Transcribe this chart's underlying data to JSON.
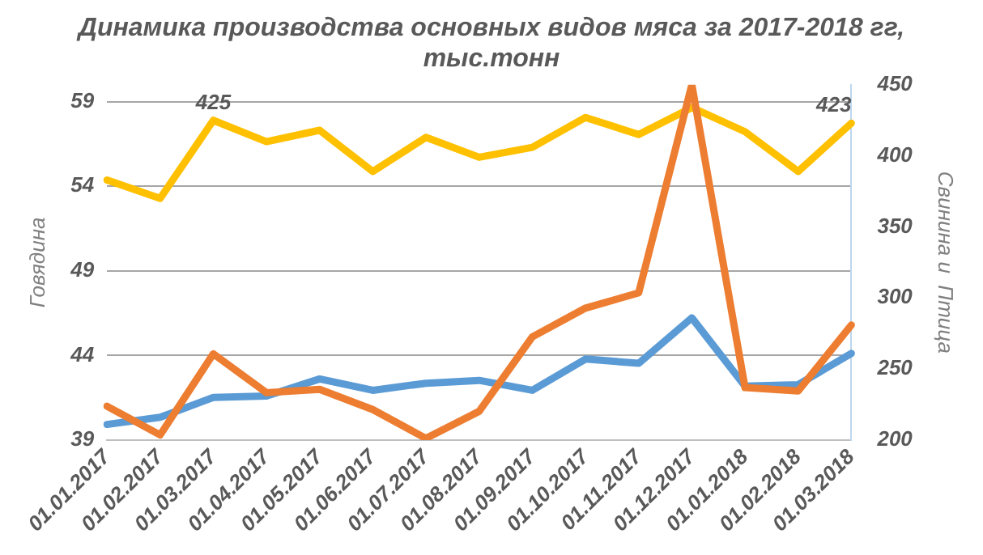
{
  "chart_data": {
    "type": "line",
    "title": "Динамика производства основных видов мяса за 2017-2018 гг, тыс.тонн",
    "ylabel": "Говядина",
    "y2label": "Свинина и  Птица",
    "categories": [
      "01.01.2017",
      "01.02.2017",
      "01.03.2017",
      "01.04.2017",
      "01.05.2017",
      "01.06.2017",
      "01.07.2017",
      "01.08.2017",
      "01.09.2017",
      "01.10.2017",
      "01.11.2017",
      "01.12.2017",
      "01.01.2018",
      "01.02.2018",
      "01.03.2018"
    ],
    "series": [
      {
        "color": "#ffc000",
        "axis": "y2",
        "values": [
          383,
          370,
          425,
          410,
          418,
          389,
          413,
          399,
          406,
          427,
          415,
          434,
          417,
          389,
          423
        ],
        "value_labels": [
          null,
          null,
          "425",
          null,
          null,
          null,
          null,
          null,
          null,
          null,
          null,
          null,
          null,
          null,
          "423"
        ]
      },
      {
        "color": "#5b9bd5",
        "axis": "y2",
        "values": [
          211,
          216,
          230,
          231,
          243,
          235,
          240,
          242,
          235,
          257,
          254,
          286,
          238,
          239,
          261
        ]
      },
      {
        "color": "#ed7d31",
        "axis": "y",
        "values": [
          41.0,
          39.3,
          44.1,
          41.8,
          42.0,
          40.8,
          39.1,
          40.7,
          45.1,
          46.8,
          47.7,
          60.0,
          42.1,
          41.9,
          45.8
        ]
      }
    ],
    "ylim": [
      39,
      60
    ],
    "yticks": [
      39,
      44,
      49,
      54,
      59
    ],
    "y2lim": [
      200,
      450
    ],
    "y2ticks": [
      200,
      250,
      300,
      350,
      400,
      450
    ],
    "grid": "y",
    "legend": false,
    "marker": "none",
    "line_style": "solid"
  }
}
